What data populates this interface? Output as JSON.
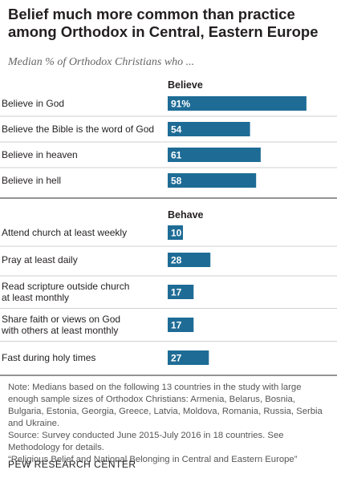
{
  "title": "Belief much more common than practice among Orthodox in Central, Eastern Europe",
  "subtitle": "Median % of Orthodox Christians who ...",
  "colors": {
    "bar": "#1e6c96",
    "bar_text": "#ffffff",
    "divider": "#cfcfcf",
    "section_rule": "#555555"
  },
  "chart_data": {
    "type": "bar",
    "orientation": "horizontal",
    "xlim": [
      0,
      100
    ],
    "groups": [
      {
        "name": "Believe",
        "categories": [
          "Believe in God",
          "Believe the Bible is the word of God",
          "Believe in heaven",
          "Believe in hell"
        ],
        "values": [
          91,
          54,
          61,
          58
        ],
        "labels": [
          "91%",
          "54",
          "61",
          "58"
        ]
      },
      {
        "name": "Behave",
        "categories": [
          "Attend church at least weekly",
          "Pray at least daily",
          "Read scripture outside church at least monthly",
          "Share faith or views on God with others at least monthly",
          "Fast during holy times"
        ],
        "values": [
          10,
          28,
          17,
          17,
          27
        ],
        "labels": [
          "10",
          "28",
          "17",
          "17",
          "27"
        ]
      }
    ]
  },
  "notes": [
    "Note: Medians based on the following 13 countries in the study with large enough sample sizes of Orthodox Christians: Armenia, Belarus, Bosnia, Bulgaria, Estonia, Georgia, Greece, Latvia, Moldova, Romania, Russia, Serbia and Ukraine.",
    "Source: Survey conducted June 2015-July 2016 in 18 countries. See Methodology for details.",
    "“Religious Belief and National Belonging in Central and Eastern Europe”"
  ],
  "footer": "PEW RESEARCH CENTER"
}
